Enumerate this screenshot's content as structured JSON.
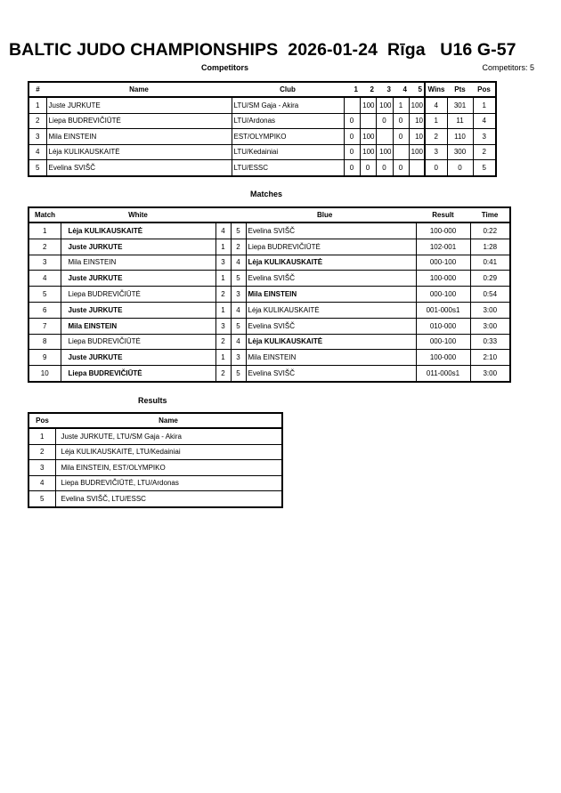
{
  "header": {
    "title": "BALTIC JUDO CHAMPIONSHIPS  2026-01-24  Rīga   U16 G-57",
    "competitors_heading": "Competitors",
    "competitors_count": "Competitors: 5",
    "matches_heading": "Matches",
    "results_heading": "Results"
  },
  "competitors": {
    "columns": [
      "#",
      "Name",
      "Club",
      "1",
      "2",
      "3",
      "4",
      "5",
      "Wins",
      "Pts",
      "Pos"
    ],
    "rows": [
      {
        "num": "1",
        "name": "Juste JURKUTE",
        "club": "LTU/SM Gaja - Akira",
        "scores": [
          "",
          "100",
          "100",
          "1",
          "100"
        ],
        "wins": "4",
        "pts": "301",
        "pos": "1"
      },
      {
        "num": "2",
        "name": "Liepa BUDREVIČIŪTĖ",
        "club": "LTU/Ardonas",
        "scores": [
          "0",
          "",
          "0",
          "0",
          "10"
        ],
        "wins": "1",
        "pts": "11",
        "pos": "4"
      },
      {
        "num": "3",
        "name": "Mila EINSTEIN",
        "club": "EST/OLYMPIKO",
        "scores": [
          "0",
          "100",
          "",
          "0",
          "10"
        ],
        "wins": "2",
        "pts": "110",
        "pos": "3"
      },
      {
        "num": "4",
        "name": "Lėja KULIKAUSKAITĖ",
        "club": "LTU/Kedainiai",
        "scores": [
          "0",
          "100",
          "100",
          "",
          "100"
        ],
        "wins": "3",
        "pts": "300",
        "pos": "2"
      },
      {
        "num": "5",
        "name": "Evelina SVIŠČ",
        "club": "LTU/ESSC",
        "scores": [
          "0",
          "0",
          "0",
          "0",
          ""
        ],
        "wins": "0",
        "pts": "0",
        "pos": "5"
      }
    ]
  },
  "matches": {
    "columns": [
      "Match",
      "White",
      "Blue",
      "Result",
      "Time"
    ],
    "rows": [
      {
        "match": "1",
        "white": "Lėja KULIKAUSKAITĖ",
        "white_num": "4",
        "blue_num": "5",
        "blue": "Evelina SVIŠČ",
        "result": "100-000",
        "time": "0:22",
        "winner": "white"
      },
      {
        "match": "2",
        "white": "Juste JURKUTE",
        "white_num": "1",
        "blue_num": "2",
        "blue": "Liepa BUDREVIČIŪTĖ",
        "result": "102-001",
        "time": "1:28",
        "winner": "white"
      },
      {
        "match": "3",
        "white": "Mila EINSTEIN",
        "white_num": "3",
        "blue_num": "4",
        "blue": "Lėja KULIKAUSKAITĖ",
        "result": "000-100",
        "time": "0:41",
        "winner": "blue"
      },
      {
        "match": "4",
        "white": "Juste JURKUTE",
        "white_num": "1",
        "blue_num": "5",
        "blue": "Evelina SVIŠČ",
        "result": "100-000",
        "time": "0:29",
        "winner": "white"
      },
      {
        "match": "5",
        "white": "Liepa BUDREVIČIŪTĖ",
        "white_num": "2",
        "blue_num": "3",
        "blue": "Mila EINSTEIN",
        "result": "000-100",
        "time": "0:54",
        "winner": "blue"
      },
      {
        "match": "6",
        "white": "Juste JURKUTE",
        "white_num": "1",
        "blue_num": "4",
        "blue": "Lėja KULIKAUSKAITĖ",
        "result": "001-000s1",
        "time": "3:00",
        "winner": "white"
      },
      {
        "match": "7",
        "white": "Mila EINSTEIN",
        "white_num": "3",
        "blue_num": "5",
        "blue": "Evelina SVIŠČ",
        "result": "010-000",
        "time": "3:00",
        "winner": "white"
      },
      {
        "match": "8",
        "white": "Liepa BUDREVIČIŪTĖ",
        "white_num": "2",
        "blue_num": "4",
        "blue": "Lėja KULIKAUSKAITĖ",
        "result": "000-100",
        "time": "0:33",
        "winner": "blue"
      },
      {
        "match": "9",
        "white": "Juste JURKUTE",
        "white_num": "1",
        "blue_num": "3",
        "blue": "Mila EINSTEIN",
        "result": "100-000",
        "time": "2:10",
        "winner": "white"
      },
      {
        "match": "10",
        "white": "Liepa BUDREVIČIŪTĖ",
        "white_num": "2",
        "blue_num": "5",
        "blue": "Evelina SVIŠČ",
        "result": "011-000s1",
        "time": "3:00",
        "winner": "white"
      }
    ]
  },
  "results": {
    "columns": [
      "Pos",
      "Name"
    ],
    "rows": [
      {
        "pos": "1",
        "name": "Juste JURKUTE, LTU/SM Gaja - Akira"
      },
      {
        "pos": "2",
        "name": "Lėja KULIKAUSKAITĖ, LTU/Kedainiai"
      },
      {
        "pos": "3",
        "name": "Mila EINSTEIN, EST/OLYMPIKO"
      },
      {
        "pos": "4",
        "name": "Liepa BUDREVIČIŪTĖ, LTU/Ardonas"
      },
      {
        "pos": "5",
        "name": "Evelina SVIŠČ, LTU/ESSC"
      }
    ]
  }
}
